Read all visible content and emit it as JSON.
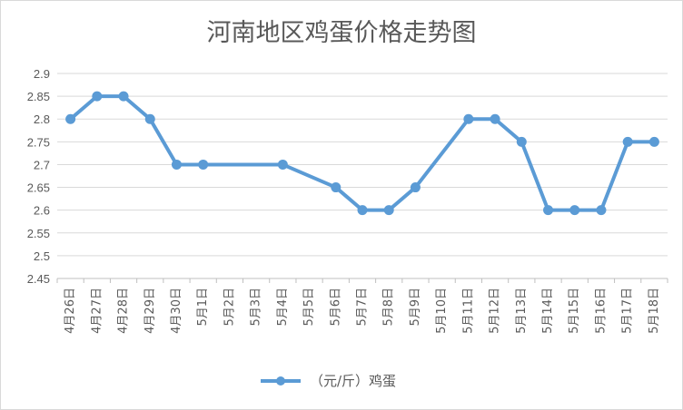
{
  "chart_data": {
    "type": "line",
    "title": "河南地区鸡蛋价格走势图",
    "xlabel": "",
    "ylabel": "",
    "categories": [
      "4月26日",
      "4月27日",
      "4月28日",
      "4月29日",
      "4月30日",
      "5月1日",
      "5月2日",
      "5月3日",
      "5月4日",
      "5月5日",
      "5月6日",
      "5月7日",
      "5月8日",
      "5月9日",
      "5月10日",
      "5月11日",
      "5月12日",
      "5月13日",
      "5月14日",
      "5月15日",
      "5月16日",
      "5月17日",
      "5月18日"
    ],
    "series": [
      {
        "name": "（元/斤）鸡蛋",
        "color": "#5b9bd5",
        "values": [
          2.8,
          2.85,
          2.85,
          2.8,
          2.7,
          2.7,
          null,
          null,
          2.7,
          null,
          2.65,
          2.6,
          2.6,
          2.65,
          null,
          2.8,
          2.8,
          2.75,
          2.6,
          2.6,
          2.6,
          2.75,
          2.75
        ]
      }
    ],
    "ylim": [
      2.45,
      2.9
    ],
    "yticks": [
      "2.45",
      "2.5",
      "2.55",
      "2.6",
      "2.65",
      "2.7",
      "2.75",
      "2.8",
      "2.85",
      "2.9"
    ],
    "grid": true,
    "legend": "bottom"
  }
}
